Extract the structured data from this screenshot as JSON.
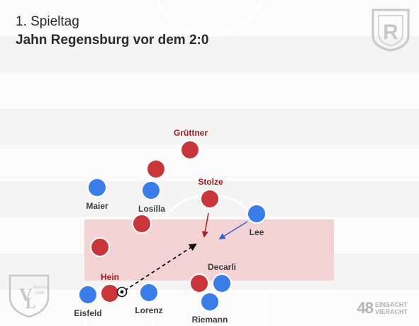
{
  "header": {
    "title": "1. Spieltag",
    "subtitle": "Jahn Regensburg vor dem 2:0"
  },
  "logos": {
    "top_right": "jahn-regensburg-crest",
    "top_right_letter": "R",
    "bottom_left": "vfl-bochum-crest",
    "bottom_left_text": "Bochum 1848"
  },
  "credit": {
    "number": "48",
    "line1": "EINSACHT",
    "line2": "VIERACHT"
  },
  "colors": {
    "home": "#c8363c",
    "away": "#3b7de8",
    "zone": "#f3c9cb",
    "home_label": "#9c1b1b"
  },
  "labels": {
    "gruettner": "Grüttner",
    "stolze": "Stolze",
    "hein": "Hein",
    "maier": "Maier",
    "losilla": "Losilla",
    "lee": "Lee",
    "decarli": "Decarli",
    "eisfeld": "Eisfeld",
    "lorenz": "Lorenz",
    "riemann": "Riemann"
  }
}
